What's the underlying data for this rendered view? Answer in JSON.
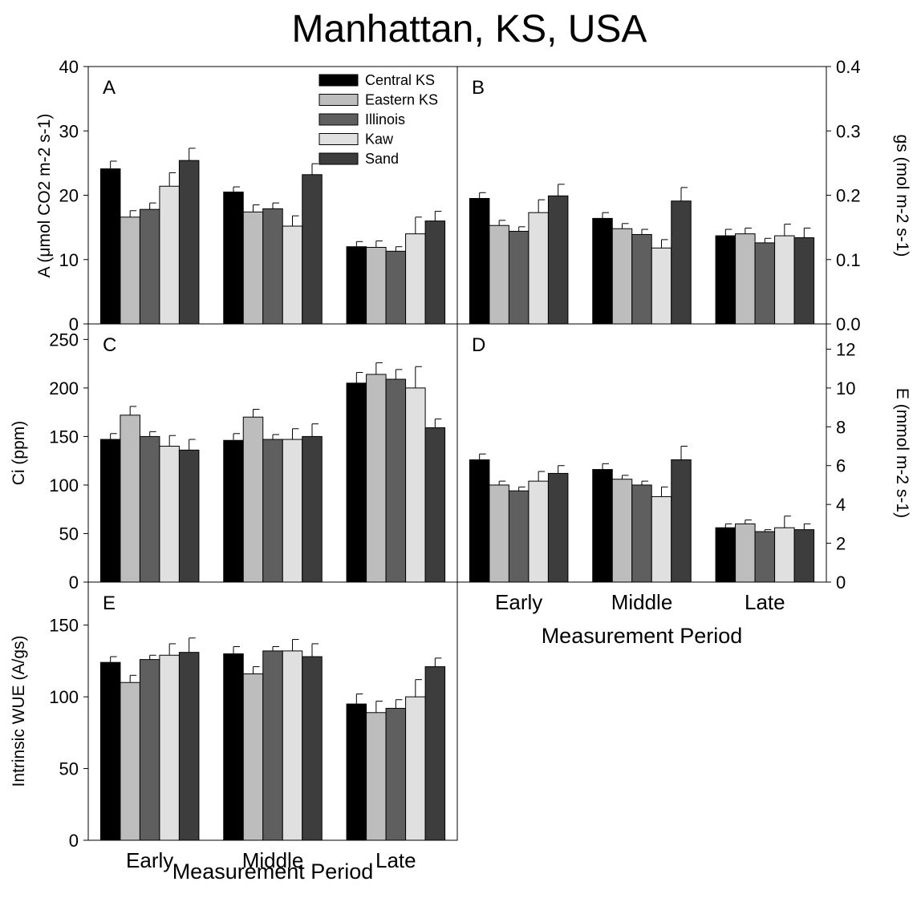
{
  "figure": {
    "title": "Manhattan, KS, USA"
  },
  "legend": {
    "entries": [
      "Central KS",
      "Eastern KS",
      "Illinois",
      "Kaw",
      "Sand"
    ],
    "colors": [
      "#000000",
      "#bdbdbd",
      "#5f5f5f",
      "#e0e0e0",
      "#3d3d3d"
    ],
    "placement": "top-right of panel A"
  },
  "chart_data": [
    {
      "panel": "A",
      "type": "bar",
      "categories": [
        "Early",
        "Middle",
        "Late"
      ],
      "ylabel": "A (μmol CO2 m-2 s-1)",
      "ylabel_side": "left",
      "ylim": [
        0,
        40
      ],
      "yticks": [
        "0",
        "10",
        "20",
        "30",
        "40"
      ],
      "series": [
        {
          "name": "Central KS",
          "values": [
            24.1,
            20.5,
            12.0
          ],
          "errors": [
            1.2,
            0.8,
            0.8
          ]
        },
        {
          "name": "Eastern KS",
          "values": [
            16.6,
            17.4,
            11.9
          ],
          "errors": [
            1.0,
            1.1,
            1.0
          ]
        },
        {
          "name": "Illinois",
          "values": [
            17.8,
            17.9,
            11.3
          ],
          "errors": [
            1.0,
            0.9,
            0.7
          ]
        },
        {
          "name": "Kaw",
          "values": [
            21.4,
            15.2,
            14.0
          ],
          "errors": [
            2.1,
            1.6,
            2.6
          ]
        },
        {
          "name": "Sand",
          "values": [
            25.4,
            23.2,
            16.0
          ],
          "errors": [
            1.9,
            1.7,
            1.5
          ]
        }
      ]
    },
    {
      "panel": "B",
      "type": "bar",
      "categories": [
        "Early",
        "Middle",
        "Late"
      ],
      "ylabel": "gs (mol m-2 s-1)",
      "ylabel_side": "right",
      "ylim": [
        0.0,
        0.4
      ],
      "yticks": [
        "0.0",
        "0.1",
        "0.2",
        "0.3",
        "0.4"
      ],
      "series": [
        {
          "name": "Central KS",
          "values": [
            0.195,
            0.164,
            0.137
          ],
          "errors": [
            0.009,
            0.009,
            0.01
          ]
        },
        {
          "name": "Eastern KS",
          "values": [
            0.153,
            0.148,
            0.14
          ],
          "errors": [
            0.008,
            0.008,
            0.009
          ]
        },
        {
          "name": "Illinois",
          "values": [
            0.144,
            0.139,
            0.126
          ],
          "errors": [
            0.007,
            0.008,
            0.007
          ]
        },
        {
          "name": "Kaw",
          "values": [
            0.173,
            0.118,
            0.137
          ],
          "errors": [
            0.02,
            0.013,
            0.018
          ]
        },
        {
          "name": "Sand",
          "values": [
            0.199,
            0.191,
            0.134
          ],
          "errors": [
            0.018,
            0.021,
            0.015
          ]
        }
      ]
    },
    {
      "panel": "C",
      "type": "bar",
      "categories": [
        "Early",
        "Middle",
        "Late"
      ],
      "ylabel": "Ci (ppm)",
      "ylabel_side": "left",
      "ylim": [
        0,
        266
      ],
      "yticks": [
        "0",
        "50",
        "100",
        "150",
        "200",
        "250"
      ],
      "series": [
        {
          "name": "Central KS",
          "values": [
            147,
            146,
            205
          ],
          "errors": [
            6,
            7,
            11
          ]
        },
        {
          "name": "Eastern KS",
          "values": [
            172,
            170,
            214
          ],
          "errors": [
            9,
            8,
            12
          ]
        },
        {
          "name": "Illinois",
          "values": [
            150,
            147,
            209
          ],
          "errors": [
            5,
            5,
            10
          ]
        },
        {
          "name": "Kaw",
          "values": [
            140,
            147,
            200
          ],
          "errors": [
            11,
            11,
            22
          ]
        },
        {
          "name": "Sand",
          "values": [
            136,
            150,
            159
          ],
          "errors": [
            11,
            13,
            9
          ]
        }
      ]
    },
    {
      "panel": "D",
      "type": "bar",
      "categories": [
        "Early",
        "Middle",
        "Late"
      ],
      "xlabel": "Measurement Period",
      "ylabel": "E (mmol m-2 s-1)",
      "ylabel_side": "right",
      "ylim": [
        0,
        13.3
      ],
      "yticks": [
        "0",
        "2",
        "4",
        "6",
        "8",
        "10",
        "12"
      ],
      "series": [
        {
          "name": "Central KS",
          "values": [
            6.3,
            5.8,
            2.8
          ],
          "errors": [
            0.3,
            0.3,
            0.2
          ]
        },
        {
          "name": "Eastern KS",
          "values": [
            5.0,
            5.3,
            3.0
          ],
          "errors": [
            0.2,
            0.2,
            0.2
          ]
        },
        {
          "name": "Illinois",
          "values": [
            4.7,
            5.0,
            2.6
          ],
          "errors": [
            0.2,
            0.2,
            0.1
          ]
        },
        {
          "name": "Kaw",
          "values": [
            5.2,
            4.4,
            2.8
          ],
          "errors": [
            0.5,
            0.5,
            0.6
          ]
        },
        {
          "name": "Sand",
          "values": [
            5.6,
            6.3,
            2.7
          ],
          "errors": [
            0.4,
            0.7,
            0.3
          ]
        }
      ]
    },
    {
      "panel": "E",
      "type": "bar",
      "categories": [
        "Early",
        "Middle",
        "Late"
      ],
      "xlabel": "Measurement Period",
      "ylabel": "Intrinsic WUE (A/gs)",
      "ylabel_side": "left",
      "ylim": [
        0,
        180
      ],
      "yticks": [
        "0",
        "50",
        "100",
        "150"
      ],
      "series": [
        {
          "name": "Central KS",
          "values": [
            124,
            130,
            95
          ],
          "errors": [
            4,
            5,
            7
          ]
        },
        {
          "name": "Eastern KS",
          "values": [
            110,
            116,
            89
          ],
          "errors": [
            5,
            5,
            8
          ]
        },
        {
          "name": "Illinois",
          "values": [
            126,
            132,
            92
          ],
          "errors": [
            3,
            3,
            6
          ]
        },
        {
          "name": "Kaw",
          "values": [
            129,
            132,
            100
          ],
          "errors": [
            8,
            8,
            12
          ]
        },
        {
          "name": "Sand",
          "values": [
            131,
            128,
            121
          ],
          "errors": [
            10,
            9,
            6
          ]
        }
      ]
    }
  ]
}
